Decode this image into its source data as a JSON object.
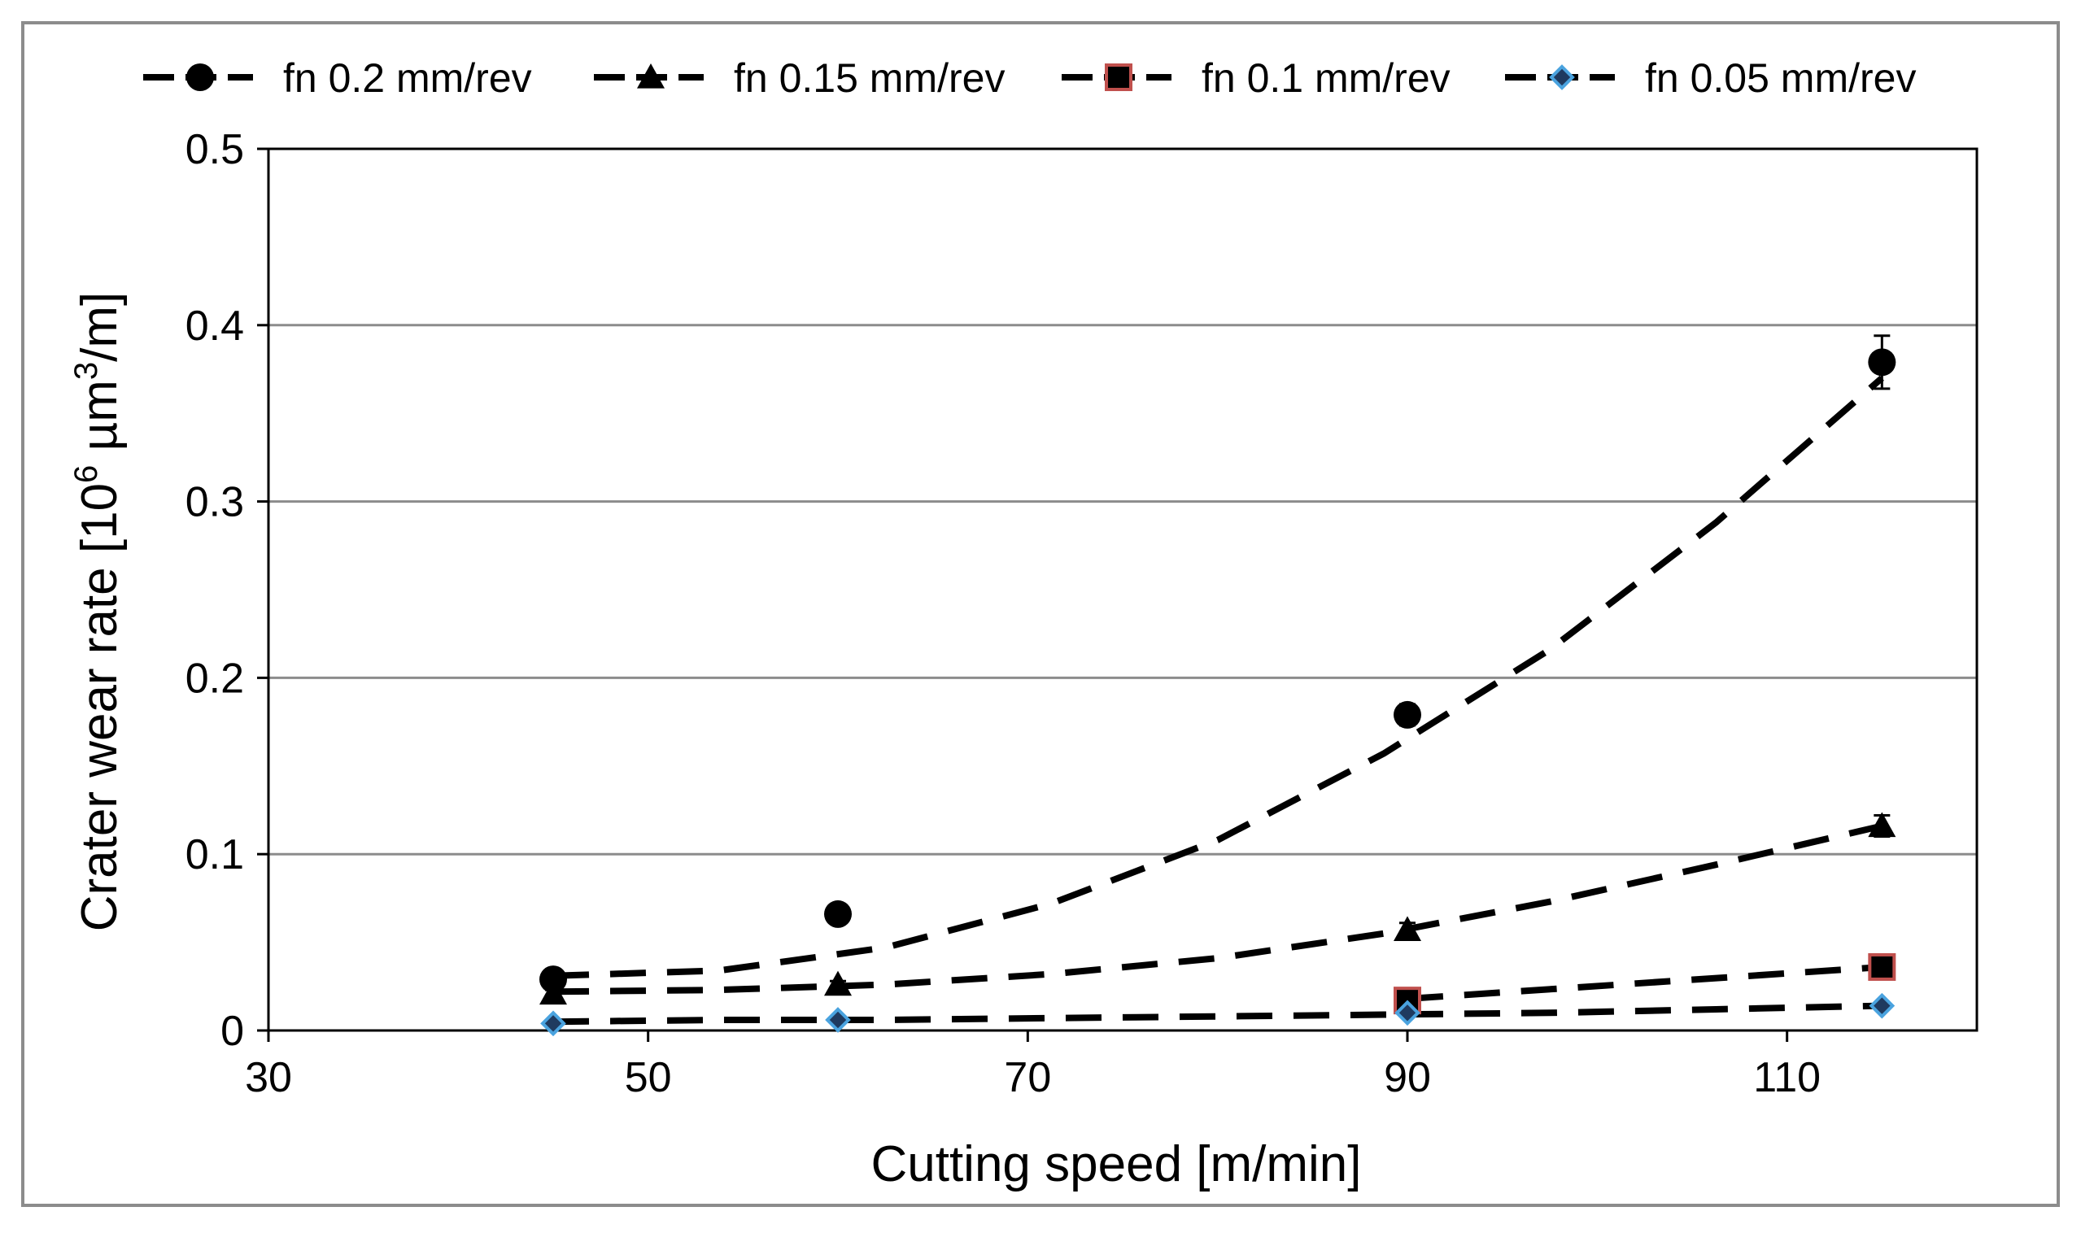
{
  "chart_data": {
    "type": "scatter",
    "title": "",
    "xlabel": "Cutting speed [m/min]",
    "ylabel_parts": {
      "before_sup1": "Crater wear rate [10",
      "sup1": "6",
      "between": " µm",
      "sup2": "3",
      "after": "/m]"
    },
    "xlim": [
      30,
      120
    ],
    "ylim": [
      0,
      0.5
    ],
    "xticks": [
      30,
      50,
      70,
      90,
      110
    ],
    "xtick_labels": [
      "30",
      "50",
      "70",
      "90",
      "110"
    ],
    "yticks": [
      0,
      0.1,
      0.2,
      0.3,
      0.4,
      0.5
    ],
    "ytick_labels": [
      "0",
      "0.1",
      "0.2",
      "0.3",
      "0.4",
      "0.5"
    ],
    "grid": "horizontal",
    "legend_position": "top",
    "trendline": "dashed polynomial fit",
    "series": [
      {
        "name": "fn 0.2 mm/rev",
        "marker": "circle",
        "color": "#000000",
        "x": [
          45,
          60,
          90,
          115
        ],
        "y": [
          0.029,
          0.066,
          0.179,
          0.379
        ],
        "error": [
          0.004,
          0.004,
          0.006,
          0.015
        ],
        "trend": [
          0.031,
          0.034,
          0.047,
          0.072,
          0.108,
          0.157,
          0.216,
          0.288,
          0.37
        ]
      },
      {
        "name": "fn 0.15 mm/rev",
        "marker": "triangle",
        "color": "#000000",
        "x": [
          45,
          60,
          90,
          115
        ],
        "y": [
          0.021,
          0.026,
          0.057,
          0.116
        ],
        "error": [
          0.002,
          0.002,
          0.004,
          0.006
        ],
        "trend": [
          0.022,
          0.023,
          0.026,
          0.032,
          0.041,
          0.055,
          0.073,
          0.094,
          0.116
        ]
      },
      {
        "name": "fn 0.1 mm/rev",
        "marker": "square",
        "color": "#000000",
        "edge_color": "#c0504d",
        "x": [
          90,
          115
        ],
        "y": [
          0.017,
          0.036
        ],
        "error": [
          0.002,
          0.003
        ],
        "trend_x": [
          90,
          115
        ],
        "trend": [
          0.018,
          0.036
        ]
      },
      {
        "name": "fn 0.05 mm/rev",
        "marker": "diamond",
        "color": "#1f3a5f",
        "edge_color": "#4aa3df",
        "x": [
          45,
          60,
          90,
          115
        ],
        "y": [
          0.004,
          0.006,
          0.01,
          0.014
        ],
        "error": [
          0.001,
          0.001,
          0.001,
          0.001
        ],
        "trend": [
          0.005,
          0.006,
          0.006,
          0.007,
          0.008,
          0.009,
          0.01,
          0.012,
          0.014
        ]
      }
    ]
  },
  "colors": {
    "axis": "#000000",
    "grid": "#8c8c8c",
    "frame": "#8c8c8c",
    "square_edge": "#c0504d",
    "diamond_edge": "#4aa3df",
    "diamond_fill": "#1f3a5f"
  }
}
